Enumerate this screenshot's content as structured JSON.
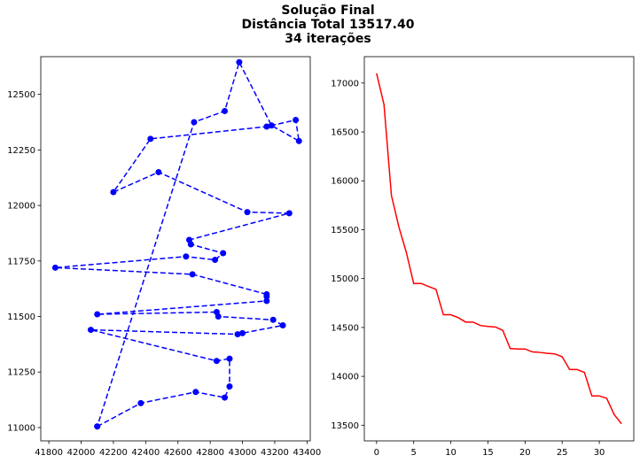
{
  "figure": {
    "title_lines": [
      "Solução Final",
      "Distância Total 13517.40",
      "34 iterações"
    ]
  },
  "chart_data": [
    {
      "type": "line",
      "style": "dashed-with-markers",
      "color": "#0000ff",
      "xlim": [
        41750,
        43420
      ],
      "ylim": [
        10940,
        12670
      ],
      "xticks": [
        41800,
        42000,
        42200,
        42400,
        42600,
        42800,
        43000,
        43200,
        43400
      ],
      "yticks": [
        11000,
        11250,
        11500,
        11750,
        12000,
        12250,
        12500
      ],
      "x": [
        42100,
        42370,
        42710,
        42890,
        42920,
        42920,
        42840,
        42060,
        42970,
        43000,
        43250,
        43190,
        42850,
        42840,
        42100,
        43150,
        43150,
        43150,
        42690,
        41840,
        42650,
        42830,
        42880,
        42680,
        42670,
        43290,
        43030,
        42480,
        42200,
        42430,
        43150,
        43330,
        43350,
        43180,
        42980,
        42890,
        42700,
        42100
      ],
      "y": [
        11005,
        11110,
        11160,
        11135,
        11185,
        11310,
        11300,
        11440,
        11420,
        11425,
        11460,
        11485,
        11500,
        11520,
        11510,
        11570,
        11590,
        11600,
        11690,
        11720,
        11770,
        11755,
        11785,
        11825,
        11845,
        11965,
        11970,
        12150,
        12060,
        12300,
        12355,
        12385,
        12290,
        12360,
        12645,
        12425,
        12375,
        11005
      ]
    },
    {
      "type": "line",
      "color": "#ff0000",
      "xlim": [
        -1.65,
        34.65
      ],
      "ylim": [
        13340,
        17270
      ],
      "xticks": [
        0,
        5,
        10,
        15,
        20,
        25,
        30
      ],
      "yticks": [
        13500,
        14000,
        14500,
        15000,
        15500,
        16000,
        16500,
        17000
      ],
      "x": [
        0,
        1,
        2,
        3,
        4,
        5,
        6,
        7,
        8,
        9,
        10,
        11,
        12,
        13,
        14,
        15,
        16,
        17,
        18,
        19,
        20,
        21,
        22,
        23,
        24,
        25,
        26,
        27,
        28,
        29,
        30,
        31,
        32,
        33
      ],
      "y": [
        17100,
        16780,
        15850,
        15530,
        15270,
        14950,
        14950,
        14920,
        14890,
        14630,
        14630,
        14600,
        14555,
        14555,
        14520,
        14510,
        14505,
        14470,
        14285,
        14280,
        14280,
        14250,
        14245,
        14235,
        14230,
        14200,
        14070,
        14070,
        14040,
        13800,
        13800,
        13775,
        13610,
        13515
      ]
    }
  ]
}
